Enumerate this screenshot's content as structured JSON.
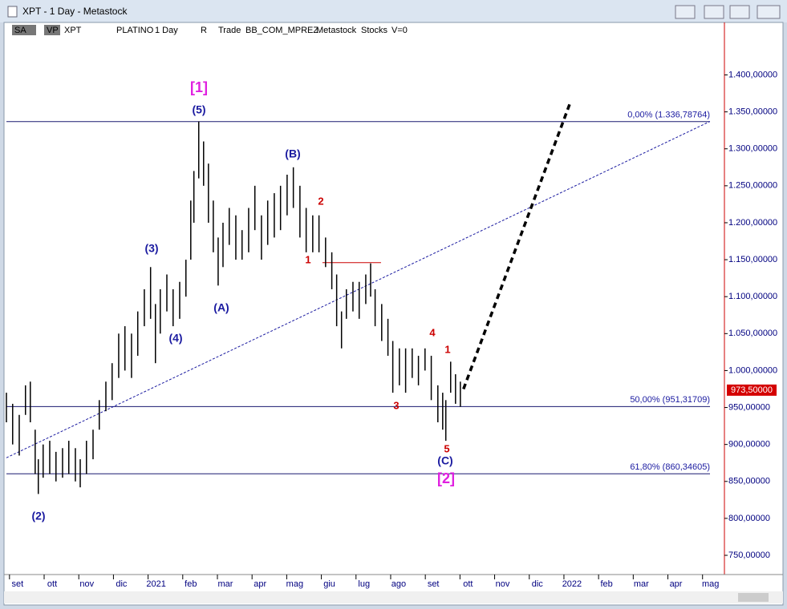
{
  "window": {
    "title": "XPT - 1 Day - Metastock",
    "toolbar": [
      "SA",
      "VP",
      "XPT",
      "PLATINO",
      "1 Day",
      "R",
      "Trade",
      "BB_COM_MPREZ",
      "Metastock",
      "Stocks",
      "V=0"
    ]
  },
  "chart_data": {
    "type": "ohlc",
    "color": "#000000",
    "x": [
      -0.32,
      -0.14,
      0.05,
      0.23,
      0.37,
      0.51,
      0.6,
      0.74,
      0.93,
      1.11,
      1.3,
      1.48,
      1.67,
      1.81,
      1.99,
      2.18,
      2.36,
      2.55,
      2.73,
      2.92,
      3.1,
      3.29,
      3.47,
      3.66,
      3.84,
      3.98,
      4.12,
      4.31,
      4.49,
      4.68,
      4.86,
      5.0,
      5.09,
      5.23,
      5.37,
      5.51,
      5.65,
      5.79,
      5.93,
      6.11,
      6.3,
      6.48,
      6.67,
      6.85,
      7.04,
      7.22,
      7.41,
      7.59,
      7.78,
      7.96,
      8.15,
      8.33,
      8.52,
      8.7,
      8.89,
      9.07,
      9.21,
      9.35,
      9.49,
      9.68,
      9.86,
      10.05,
      10.19,
      10.32,
      10.51,
      10.69,
      10.83,
      11.02,
      11.2,
      11.39,
      11.57,
      11.76,
      11.94,
      12.13,
      12.27,
      12.36,
      12.5,
      12.64,
      12.78
    ],
    "low": [
      930,
      900,
      885,
      940,
      930,
      860,
      833,
      855,
      860,
      850,
      855,
      860,
      850,
      842,
      860,
      880,
      920,
      945,
      960,
      990,
      1000,
      990,
      1020,
      1060,
      1070,
      1010,
      1050,
      1080,
      1060,
      1070,
      1100,
      1150,
      1200,
      1260,
      1250,
      1200,
      1160,
      1115,
      1140,
      1170,
      1150,
      1150,
      1160,
      1190,
      1150,
      1170,
      1180,
      1190,
      1210,
      1220,
      1180,
      1160,
      1160,
      1160,
      1140,
      1110,
      1060,
      1030,
      1070,
      1080,
      1070,
      1090,
      1100,
      1060,
      1040,
      1020,
      970,
      980,
      970,
      990,
      980,
      1000,
      960,
      930,
      920,
      905,
      970,
      955,
      951
    ],
    "high": [
      970,
      955,
      940,
      980,
      985,
      920,
      880,
      900,
      905,
      890,
      895,
      905,
      895,
      880,
      905,
      920,
      960,
      985,
      1010,
      1050,
      1060,
      1050,
      1080,
      1110,
      1140,
      1090,
      1110,
      1130,
      1110,
      1120,
      1150,
      1230,
      1270,
      1337,
      1310,
      1280,
      1230,
      1180,
      1200,
      1220,
      1210,
      1190,
      1220,
      1250,
      1210,
      1230,
      1240,
      1250,
      1265,
      1275,
      1250,
      1220,
      1210,
      1210,
      1180,
      1160,
      1130,
      1080,
      1110,
      1120,
      1120,
      1130,
      1145,
      1110,
      1090,
      1070,
      1040,
      1030,
      1030,
      1030,
      1020,
      1030,
      1020,
      980,
      970,
      960,
      1012,
      995,
      985
    ],
    "xlim": [
      -0.32,
      20.4
    ],
    "xticks": [
      {
        "value": 0,
        "label": "set"
      },
      {
        "value": 1,
        "label": "ott"
      },
      {
        "value": 2,
        "label": "nov"
      },
      {
        "value": 3,
        "label": "dic"
      },
      {
        "value": 4,
        "label": "2021"
      },
      {
        "value": 5,
        "label": "feb"
      },
      {
        "value": 6,
        "label": "mar"
      },
      {
        "value": 7,
        "label": "apr"
      },
      {
        "value": 8,
        "label": "mag"
      },
      {
        "value": 9,
        "label": "giu"
      },
      {
        "value": 10,
        "label": "lug"
      },
      {
        "value": 11,
        "label": "ago"
      },
      {
        "value": 12,
        "label": "set"
      },
      {
        "value": 13,
        "label": "ott"
      },
      {
        "value": 14,
        "label": "nov"
      },
      {
        "value": 15,
        "label": "dic"
      },
      {
        "value": 16,
        "label": "2022"
      },
      {
        "value": 17,
        "label": "feb"
      },
      {
        "value": 18,
        "label": "mar"
      },
      {
        "value": 19,
        "label": "apr"
      },
      {
        "value": 20,
        "label": "mag"
      }
    ],
    "ylim": [
      724,
      1471
    ],
    "yticks": [
      {
        "value": 750,
        "label": "750,00000"
      },
      {
        "value": 800,
        "label": "800,00000"
      },
      {
        "value": 850,
        "label": "850,00000"
      },
      {
        "value": 900,
        "label": "900,00000"
      },
      {
        "value": 950,
        "label": "950,00000"
      },
      {
        "value": 1000,
        "label": "1.000,00000"
      },
      {
        "value": 1050,
        "label": "1.050,00000"
      },
      {
        "value": 1100,
        "label": "1.100,00000"
      },
      {
        "value": 1150,
        "label": "1.150,00000"
      },
      {
        "value": 1200,
        "label": "1.200,00000"
      },
      {
        "value": 1250,
        "label": "1.250,00000"
      },
      {
        "value": 1300,
        "label": "1.300,00000"
      },
      {
        "value": 1350,
        "label": "1.350,00000"
      },
      {
        "value": 1400,
        "label": "1.400,00000"
      }
    ],
    "levels": [
      {
        "value": 1336.78764,
        "label": "0,00% (1.336,78764)"
      },
      {
        "value": 951.31709,
        "label": "50,00% (951,31709)"
      },
      {
        "value": 860.34605,
        "label": "61,80% (860,34605)"
      }
    ],
    "last_price": {
      "value": 973.5,
      "label": "973,50000"
    },
    "trendline": {
      "x": [
        -0.32,
        19.98
      ],
      "y": [
        882,
        1337
      ],
      "color": "#1a1aa0"
    },
    "forecast": {
      "x": [
        12.87,
        15.97
      ],
      "y": [
        975,
        1365
      ],
      "color": "#000000"
    },
    "red_line": {
      "x": [
        8.8,
        10.49
      ],
      "y": [
        1146,
        1146
      ],
      "color": "#cc0000"
    },
    "annotations": [
      {
        "text": "[1]",
        "color": "#e020e0"
      },
      {
        "text": "(5)",
        "color": "#1a1aa0"
      },
      {
        "text": "(B)",
        "color": "#1a1aa0"
      },
      {
        "text": "(3)",
        "color": "#1a1aa0"
      },
      {
        "text": "(4)",
        "color": "#1a1aa0"
      },
      {
        "text": "(A)",
        "color": "#1a1aa0"
      },
      {
        "text": "(2)",
        "color": "#1a1aa0"
      },
      {
        "text": "2",
        "color": "#cc0000"
      },
      {
        "text": "1",
        "color": "#cc0000"
      },
      {
        "text": "4",
        "color": "#cc0000"
      },
      {
        "text": "1",
        "color": "#cc0000"
      },
      {
        "text": "3",
        "color": "#cc0000"
      },
      {
        "text": "5",
        "color": "#cc0000"
      },
      {
        "text": "(C)",
        "color": "#1a1aa0"
      },
      {
        "text": "[2]",
        "color": "#e020e0"
      }
    ]
  }
}
